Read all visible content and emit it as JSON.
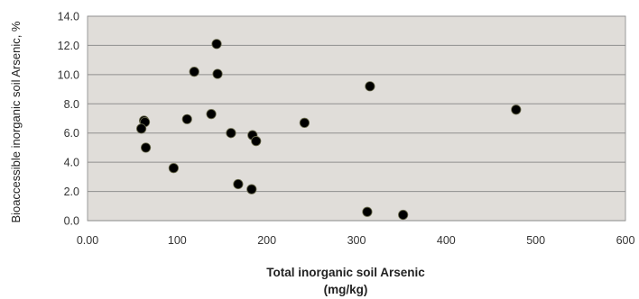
{
  "chart_data": {
    "type": "scatter",
    "title": "",
    "xlabel_lines": [
      "Total inorganic soil Arsenic",
      "(mg/kg)"
    ],
    "ylabel": "Bioaccessible inorganic soil Arsenic, %",
    "xlim": [
      0,
      600
    ],
    "ylim": [
      0,
      14
    ],
    "x_ticks": [
      0,
      100,
      200,
      300,
      400,
      500,
      600
    ],
    "x_tick_labels": [
      "0.00",
      "100",
      "200",
      "300",
      "400",
      "500",
      "600"
    ],
    "y_ticks": [
      0,
      2,
      4,
      6,
      8,
      10,
      12,
      14
    ],
    "y_tick_labels": [
      "0.0",
      "2.0",
      "4.0",
      "6.0",
      "8.0",
      "10.0",
      "12.0",
      "14.0"
    ],
    "grid": "horizontal",
    "plot_background": "#e0ddd9",
    "marker_color": "#000000",
    "points": [
      {
        "x": 63,
        "y": 6.85
      },
      {
        "x": 64,
        "y": 6.75
      },
      {
        "x": 60,
        "y": 6.3
      },
      {
        "x": 65,
        "y": 5.0
      },
      {
        "x": 96,
        "y": 3.6
      },
      {
        "x": 111,
        "y": 6.95
      },
      {
        "x": 119,
        "y": 10.2
      },
      {
        "x": 138,
        "y": 7.3
      },
      {
        "x": 144,
        "y": 12.1
      },
      {
        "x": 145,
        "y": 10.05
      },
      {
        "x": 160,
        "y": 6.0
      },
      {
        "x": 168,
        "y": 2.5
      },
      {
        "x": 183,
        "y": 2.15
      },
      {
        "x": 184,
        "y": 5.85
      },
      {
        "x": 188,
        "y": 5.45
      },
      {
        "x": 242,
        "y": 6.7
      },
      {
        "x": 312,
        "y": 0.6
      },
      {
        "x": 315,
        "y": 9.2
      },
      {
        "x": 352,
        "y": 0.4
      },
      {
        "x": 478,
        "y": 7.6
      }
    ]
  }
}
